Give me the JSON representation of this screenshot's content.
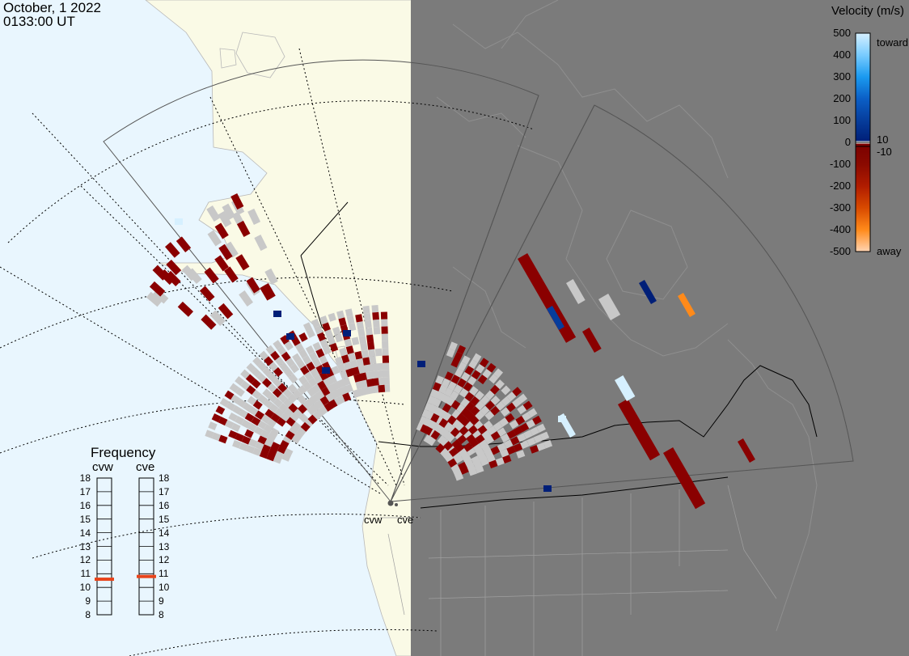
{
  "header": {
    "date": "October, 1 2022",
    "time": "0133:00 UT"
  },
  "colors": {
    "ocean": "#e9f6fe",
    "land_day": "#fafae6",
    "night": "#7b7b7b",
    "ground_scatter": "#c8c8c8",
    "accent_frequency": "#e8441b"
  },
  "velocity_scale": {
    "title": "Velocity (m/s)",
    "ticks": [
      "500",
      "400",
      "300",
      "200",
      "100",
      "0",
      "-100",
      "-200",
      "-300",
      "-400",
      "-500"
    ],
    "inner_labels": [
      "10",
      "-10"
    ],
    "toward_label": "toward",
    "away_label": "away",
    "gradient": [
      "#d6f0ff",
      "#79ccff",
      "#1a9af0",
      "#0b5fc6",
      "#063d9c",
      "#001f78",
      "#7a0000",
      "#b01c00",
      "#d84a00",
      "#ff8a1a",
      "#ffd4b2"
    ]
  },
  "frequency_panel": {
    "title": "Frequency",
    "radars": [
      {
        "name": "cvw",
        "frequency_mhz": 10.6
      },
      {
        "name": "cve",
        "frequency_mhz": 10.8
      }
    ],
    "ticks": [
      "18",
      "17",
      "16",
      "15",
      "14",
      "13",
      "12",
      "11",
      "10",
      "9",
      "8"
    ]
  },
  "sites": [
    {
      "name": "cvw"
    },
    {
      "name": "cve"
    }
  ]
}
